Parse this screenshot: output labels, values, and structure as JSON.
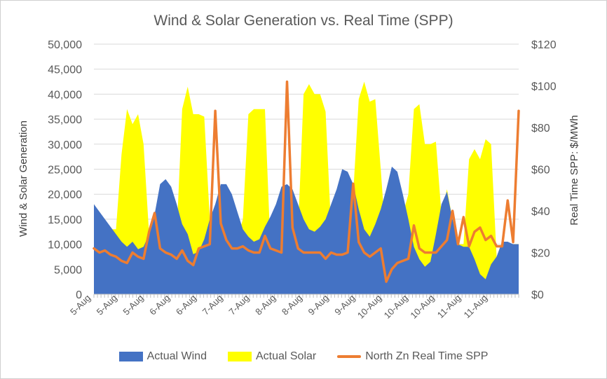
{
  "chart_data": {
    "type": "area",
    "title": "Wind & Solar Generation vs. Real Time (SPP)",
    "ylabel_left": "Wind & Solar Generation",
    "ylabel_right": "Real Time SPP: $/MWh",
    "yticks_left": [
      "0",
      "5,000",
      "10,000",
      "15,000",
      "20,000",
      "25,000",
      "30,000",
      "35,000",
      "40,000",
      "45,000",
      "50,000"
    ],
    "yticks_right": [
      "$0",
      "$20",
      "$40",
      "$60",
      "$80",
      "$100",
      "$120"
    ],
    "ylim_left": [
      0,
      50000
    ],
    "ylim_right": [
      0,
      120
    ],
    "x_tick_labels": [
      "5-Aug",
      "5-Aug",
      "5-Aug",
      "6-Aug",
      "6-Aug",
      "7-Aug",
      "7-Aug",
      "8-Aug",
      "8-Aug",
      "9-Aug",
      "9-Aug",
      "10-Aug",
      "10-Aug",
      "10-Aug",
      "11-Aug",
      "11-Aug"
    ],
    "gridlines": true,
    "legend_position": "bottom",
    "colors": {
      "wind": "#4472C4",
      "solar": "#FFFF00",
      "spp": "#ED7D31"
    },
    "series": [
      {
        "name": "Actual Wind",
        "axis": "left",
        "style": "area",
        "values": [
          18000,
          16500,
          15000,
          13500,
          12000,
          10500,
          9500,
          10500,
          9000,
          9500,
          12000,
          16000,
          22000,
          23000,
          21500,
          18000,
          14000,
          12000,
          8000,
          8500,
          11000,
          15000,
          18000,
          22000,
          22000,
          20000,
          16500,
          13000,
          11500,
          10500,
          11000,
          13500,
          15500,
          18000,
          21500,
          22000,
          21000,
          18000,
          15000,
          13000,
          12500,
          13500,
          15000,
          18000,
          21000,
          25000,
          24500,
          22000,
          17000,
          13000,
          11500,
          14000,
          17000,
          21000,
          25500,
          24500,
          20000,
          15000,
          9500,
          7000,
          5500,
          6500,
          12000,
          18000,
          20500,
          15000,
          10000,
          9500,
          9500,
          7000,
          4000,
          3000,
          6000,
          7500,
          10500,
          10500,
          10000,
          10000
        ]
      },
      {
        "name": "Actual Solar",
        "axis": "left",
        "style": "area",
        "values": [
          18000,
          16000,
          15000,
          13000,
          13000,
          28000,
          37000,
          34000,
          36000,
          30000,
          12000,
          10000,
          12500,
          10000,
          9500,
          12000,
          37000,
          41500,
          36000,
          36000,
          35500,
          15000,
          8500,
          9000,
          9000,
          11000,
          11000,
          15000,
          36000,
          37000,
          37000,
          37000,
          9500,
          10000,
          10500,
          11000,
          11000,
          12500,
          40000,
          42000,
          40000,
          40000,
          36500,
          13000,
          12000,
          14000,
          15000,
          20000,
          39000,
          42500,
          38500,
          39000,
          25000,
          9500,
          11000,
          14000,
          16000,
          20000,
          37000,
          38000,
          30000,
          30000,
          30500,
          16000,
          21000,
          15000,
          10000,
          10000,
          27000,
          29000,
          27000,
          31000,
          30000,
          7500,
          8000,
          9500,
          10000,
          10000
        ]
      },
      {
        "name": "North Zn Real Time SPP",
        "axis": "right",
        "style": "line",
        "values": [
          22,
          20,
          21,
          19,
          18,
          16,
          15,
          20,
          18,
          17,
          30,
          39,
          22,
          20,
          19,
          17,
          21,
          16,
          14,
          22,
          23,
          24,
          88,
          34,
          26,
          22,
          22,
          23,
          21,
          20,
          20,
          28,
          22,
          21,
          20,
          102,
          32,
          22,
          20,
          20,
          20,
          20,
          17,
          20,
          19,
          19,
          20,
          53,
          25,
          20,
          18,
          20,
          22,
          6,
          12,
          15,
          16,
          17,
          33,
          22,
          20,
          20,
          20,
          23,
          26,
          40,
          24,
          37,
          23,
          30,
          32,
          26,
          28,
          23,
          23,
          45,
          25,
          88
        ]
      }
    ]
  }
}
